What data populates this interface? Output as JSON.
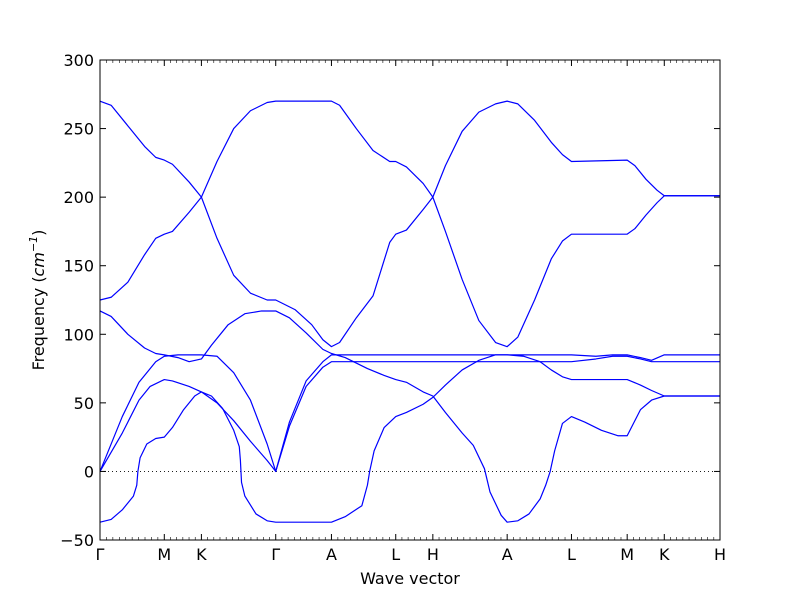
{
  "chart_data": {
    "type": "line",
    "title": "",
    "xlabel": "Wave vector",
    "ylabel_prefix": "Frequency (",
    "ylabel_unit": "cm",
    "ylabel_exp": "−1",
    "ylabel_suffix": ")",
    "ylim": [
      -50,
      300
    ],
    "yticks": [
      -50,
      0,
      50,
      100,
      150,
      200,
      250,
      300
    ],
    "grid": false,
    "zero_line": true,
    "line_color": "#0000ff",
    "x_points": [
      {
        "label": "Γ",
        "x": 0.0
      },
      {
        "label": "M",
        "x": 0.577
      },
      {
        "label": "K",
        "x": 0.91
      },
      {
        "label": "Γ",
        "x": 1.577
      },
      {
        "label": "A",
        "x": 2.077
      },
      {
        "label": "L",
        "x": 2.654
      },
      {
        "label": "H",
        "x": 2.987
      },
      {
        "label": "A",
        "x": 3.654
      },
      {
        "label": "L",
        "x": 4.231
      },
      {
        "label": "M",
        "x": 4.731
      },
      {
        "label": "K",
        "x": 5.064
      },
      {
        "label": "H",
        "x": 5.564
      }
    ],
    "series": [
      {
        "points": [
          [
            0,
            270
          ],
          [
            0.1,
            267
          ],
          [
            0.25,
            252
          ],
          [
            0.4,
            237
          ],
          [
            0.5,
            229
          ],
          [
            0.577,
            227
          ],
          [
            0.65,
            224
          ],
          [
            0.8,
            211
          ],
          [
            0.91,
            200
          ],
          [
            1.05,
            170
          ],
          [
            1.2,
            143
          ],
          [
            1.35,
            130
          ],
          [
            1.5,
            125
          ],
          [
            1.577,
            125
          ],
          [
            1.75,
            118
          ],
          [
            1.9,
            107
          ],
          [
            2.0,
            96
          ],
          [
            2.077,
            91
          ],
          [
            2.15,
            94
          ],
          [
            2.3,
            112
          ],
          [
            2.45,
            128
          ],
          [
            2.6,
            167
          ],
          [
            2.654,
            173
          ],
          [
            2.75,
            176
          ],
          [
            2.9,
            191
          ],
          [
            2.987,
            200
          ],
          [
            3.1,
            223
          ],
          [
            3.25,
            248
          ],
          [
            3.4,
            262
          ],
          [
            3.55,
            268
          ],
          [
            3.654,
            270
          ],
          [
            3.75,
            268
          ],
          [
            3.9,
            256
          ],
          [
            4.05,
            240
          ],
          [
            4.15,
            231
          ],
          [
            4.231,
            226
          ],
          [
            4.731,
            227
          ],
          [
            4.8,
            223
          ],
          [
            4.9,
            213
          ],
          [
            5.0,
            205
          ],
          [
            5.064,
            201
          ],
          [
            5.564,
            201
          ]
        ]
      },
      {
        "points": [
          [
            0,
            125
          ],
          [
            0.1,
            127
          ],
          [
            0.25,
            138
          ],
          [
            0.4,
            158
          ],
          [
            0.5,
            170
          ],
          [
            0.577,
            173
          ],
          [
            0.65,
            175
          ],
          [
            0.8,
            189
          ],
          [
            0.91,
            200
          ],
          [
            1.05,
            226
          ],
          [
            1.2,
            250
          ],
          [
            1.35,
            263
          ],
          [
            1.5,
            269
          ],
          [
            1.577,
            270
          ],
          [
            2.077,
            270
          ],
          [
            2.15,
            267
          ],
          [
            2.3,
            250
          ],
          [
            2.45,
            234
          ],
          [
            2.6,
            226
          ],
          [
            2.654,
            226
          ],
          [
            2.75,
            222
          ],
          [
            2.9,
            210
          ],
          [
            2.987,
            200
          ],
          [
            3.1,
            175
          ],
          [
            3.25,
            140
          ],
          [
            3.4,
            110
          ],
          [
            3.55,
            94
          ],
          [
            3.654,
            91
          ],
          [
            3.75,
            98
          ],
          [
            3.9,
            125
          ],
          [
            4.05,
            155
          ],
          [
            4.15,
            168
          ],
          [
            4.231,
            173
          ],
          [
            4.731,
            173
          ],
          [
            4.8,
            177
          ],
          [
            4.9,
            187
          ],
          [
            5.0,
            196
          ],
          [
            5.064,
            201
          ],
          [
            5.564,
            201
          ]
        ]
      },
      {
        "points": [
          [
            0,
            117
          ],
          [
            0.1,
            113
          ],
          [
            0.25,
            100
          ],
          [
            0.4,
            90
          ],
          [
            0.5,
            86
          ],
          [
            0.577,
            85
          ],
          [
            0.7,
            83
          ],
          [
            0.8,
            80
          ],
          [
            0.91,
            82
          ],
          [
            1.0,
            92
          ],
          [
            1.15,
            107
          ],
          [
            1.3,
            115
          ],
          [
            1.45,
            117
          ],
          [
            1.577,
            117
          ],
          [
            1.7,
            112
          ],
          [
            1.85,
            101
          ],
          [
            2.0,
            89
          ],
          [
            2.077,
            86
          ],
          [
            2.2,
            83
          ],
          [
            2.4,
            75
          ],
          [
            2.55,
            70
          ],
          [
            2.654,
            67
          ],
          [
            2.75,
            65
          ],
          [
            2.9,
            58
          ],
          [
            2.987,
            55
          ],
          [
            3.1,
            43
          ],
          [
            3.25,
            28
          ],
          [
            3.35,
            19
          ],
          [
            3.45,
            2
          ],
          [
            3.5,
            -15
          ],
          [
            3.6,
            -32
          ],
          [
            3.654,
            -37
          ],
          [
            3.75,
            -36
          ],
          [
            3.85,
            -31
          ],
          [
            3.95,
            -20
          ],
          [
            4.0,
            -10
          ],
          [
            4.04,
            0
          ],
          [
            4.08,
            15
          ],
          [
            4.15,
            35
          ],
          [
            4.231,
            40
          ],
          [
            4.35,
            36
          ],
          [
            4.5,
            30
          ],
          [
            4.65,
            26
          ],
          [
            4.731,
            26
          ],
          [
            4.85,
            45
          ],
          [
            4.95,
            52
          ],
          [
            5.064,
            55
          ],
          [
            5.564,
            55
          ]
        ]
      },
      {
        "points": [
          [
            0,
            0
          ],
          [
            0.2,
            40
          ],
          [
            0.35,
            65
          ],
          [
            0.45,
            75
          ],
          [
            0.5,
            80
          ],
          [
            0.577,
            84
          ],
          [
            0.7,
            85
          ],
          [
            0.91,
            85
          ],
          [
            1.05,
            84
          ],
          [
            1.2,
            72
          ],
          [
            1.35,
            52
          ],
          [
            1.5,
            20
          ],
          [
            1.577,
            0
          ],
          [
            1.7,
            36
          ],
          [
            1.85,
            66
          ],
          [
            2.0,
            80
          ],
          [
            2.077,
            85
          ],
          [
            3.654,
            85
          ],
          [
            4.231,
            85
          ],
          [
            4.45,
            84
          ],
          [
            4.6,
            85
          ],
          [
            4.731,
            85
          ],
          [
            4.85,
            83
          ],
          [
            4.95,
            81
          ],
          [
            5.064,
            85
          ],
          [
            5.564,
            85
          ]
        ]
      },
      {
        "points": [
          [
            0,
            0
          ],
          [
            0.2,
            28
          ],
          [
            0.35,
            52
          ],
          [
            0.45,
            62
          ],
          [
            0.577,
            67
          ],
          [
            0.65,
            66
          ],
          [
            0.8,
            62
          ],
          [
            0.91,
            58
          ],
          [
            1.05,
            50
          ],
          [
            1.2,
            37
          ],
          [
            1.35,
            22
          ],
          [
            1.5,
            8
          ],
          [
            1.577,
            0
          ],
          [
            1.7,
            33
          ],
          [
            1.85,
            62
          ],
          [
            2.0,
            76
          ],
          [
            2.077,
            80
          ],
          [
            3.654,
            80
          ],
          [
            4.231,
            80
          ],
          [
            4.45,
            82
          ],
          [
            4.6,
            84
          ],
          [
            4.731,
            84
          ],
          [
            4.85,
            82
          ],
          [
            4.95,
            80
          ],
          [
            5.064,
            80
          ],
          [
            5.564,
            80
          ]
        ]
      },
      {
        "points": [
          [
            0,
            -37
          ],
          [
            0.1,
            -35
          ],
          [
            0.2,
            -28
          ],
          [
            0.3,
            -18
          ],
          [
            0.33,
            -10
          ],
          [
            0.34,
            0
          ],
          [
            0.36,
            10
          ],
          [
            0.42,
            20
          ],
          [
            0.5,
            24
          ],
          [
            0.577,
            25
          ],
          [
            0.65,
            32
          ],
          [
            0.75,
            45
          ],
          [
            0.85,
            55
          ],
          [
            0.91,
            58
          ],
          [
            1.0,
            55
          ],
          [
            1.1,
            46
          ],
          [
            1.2,
            30
          ],
          [
            1.25,
            18
          ],
          [
            1.26,
            8
          ],
          [
            1.27,
            -8
          ],
          [
            1.3,
            -18
          ],
          [
            1.4,
            -31
          ],
          [
            1.5,
            -36
          ],
          [
            1.577,
            -37
          ],
          [
            2.077,
            -37
          ],
          [
            2.2,
            -33
          ],
          [
            2.35,
            -25
          ],
          [
            2.4,
            -10
          ],
          [
            2.42,
            0
          ],
          [
            2.46,
            15
          ],
          [
            2.55,
            32
          ],
          [
            2.654,
            40
          ],
          [
            2.75,
            43
          ],
          [
            2.9,
            49
          ],
          [
            2.987,
            54
          ],
          [
            3.1,
            63
          ],
          [
            3.25,
            74
          ],
          [
            3.4,
            81
          ],
          [
            3.55,
            85
          ],
          [
            3.654,
            85
          ],
          [
            3.8,
            84
          ],
          [
            3.95,
            80
          ],
          [
            4.05,
            74
          ],
          [
            4.15,
            69
          ],
          [
            4.231,
            67
          ],
          [
            4.731,
            67
          ],
          [
            4.85,
            63
          ],
          [
            4.95,
            59
          ],
          [
            5.064,
            55
          ],
          [
            5.564,
            55
          ]
        ]
      }
    ]
  }
}
